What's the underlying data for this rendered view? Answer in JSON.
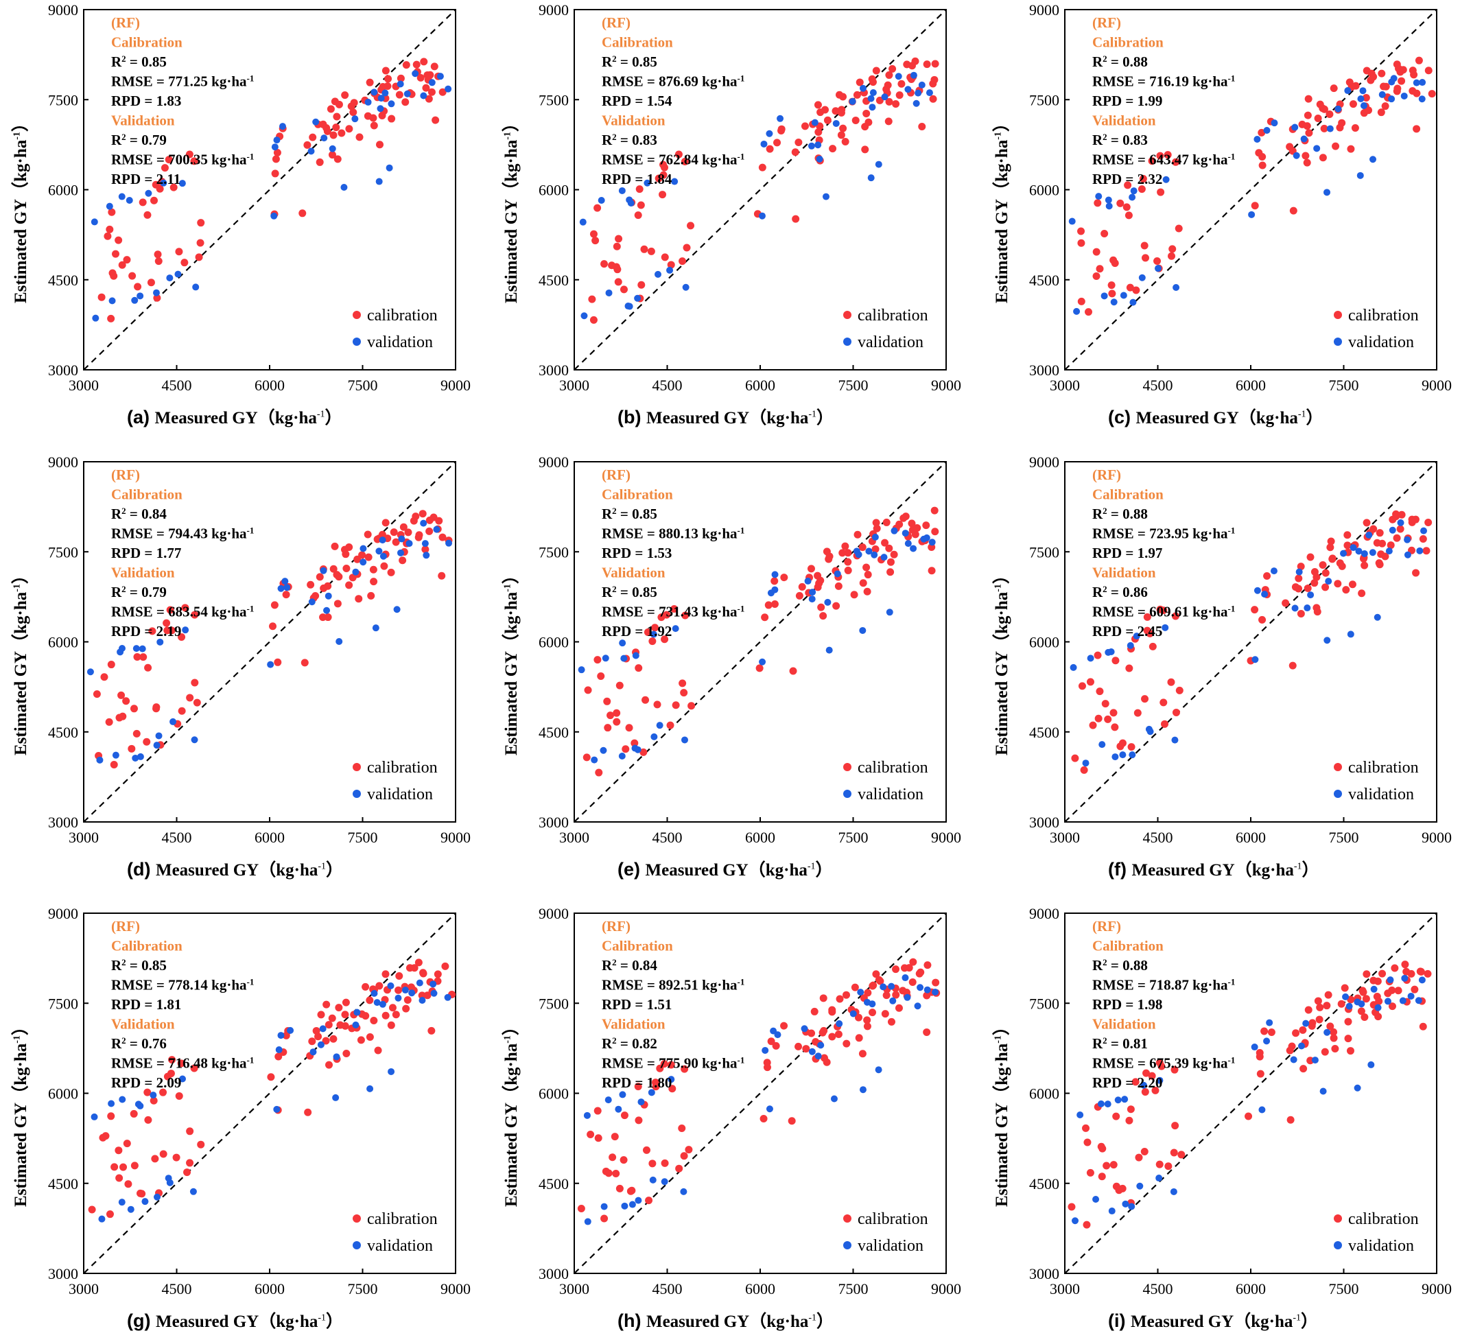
{
  "colors": {
    "calibration": "#f5363a",
    "validation": "#1e5fe0",
    "stats_heading": "#f0883e",
    "axis": "#000000"
  },
  "axes": {
    "xlim": [
      3000,
      9000
    ],
    "ylim": [
      3000,
      9000
    ],
    "ticks": [
      3000,
      4500,
      6000,
      7500,
      9000
    ],
    "tick_labels": [
      "3000",
      "4500",
      "6000",
      "7500",
      "9000"
    ],
    "xlabel": "Measured GY（kg·ha",
    "xlabel_sup": "-1",
    "xlabel_end": "）",
    "ylabel": "Estimated GY（kg·ha",
    "ylabel_sup": "-1",
    "ylabel_end": "）",
    "reference_line": "1:1 dashed",
    "grid": false
  },
  "legend": {
    "calibration": "calibration",
    "validation": "validation",
    "position": "bottom-right"
  },
  "stats_labels": {
    "model": "(RF)",
    "calibration": "Calibration",
    "validation": "Validation",
    "r2": "R",
    "r2_sup": "2",
    "r2_eq": " = ",
    "rmse": "RMSE = ",
    "rmse_unit": " kg·ha",
    "rmse_sup": "-1",
    "rpd": "RPD = "
  },
  "chart_data": [
    {
      "type": "scatter",
      "panel": "(a)",
      "cal": {
        "r2": "0.85",
        "rmse": "771.25",
        "rpd": "1.83"
      },
      "val": {
        "r2": "0.79",
        "rmse": "700.35",
        "rpd": "2.11"
      }
    },
    {
      "type": "scatter",
      "panel": "(b)",
      "cal": {
        "r2": "0.85",
        "rmse": "876.69",
        "rpd": "1.54"
      },
      "val": {
        "r2": "0.83",
        "rmse": "762.84",
        "rpd": "1.84"
      }
    },
    {
      "type": "scatter",
      "panel": "(c)",
      "cal": {
        "r2": "0.88",
        "rmse": "716.19",
        "rpd": "1.99"
      },
      "val": {
        "r2": "0.83",
        "rmse": "643.47",
        "rpd": "2.32"
      }
    },
    {
      "type": "scatter",
      "panel": "(d)",
      "cal": {
        "r2": "0.84",
        "rmse": "794.43",
        "rpd": "1.77"
      },
      "val": {
        "r2": "0.79",
        "rmse": "683.54",
        "rpd": "2.19"
      }
    },
    {
      "type": "scatter",
      "panel": "(e)",
      "cal": {
        "r2": "0.85",
        "rmse": "880.13",
        "rpd": "1.53"
      },
      "val": {
        "r2": "0.85",
        "rmse": "731.43",
        "rpd": "1.92"
      }
    },
    {
      "type": "scatter",
      "panel": "(f)",
      "cal": {
        "r2": "0.88",
        "rmse": "723.95",
        "rpd": "1.97"
      },
      "val": {
        "r2": "0.86",
        "rmse": "609.61",
        "rpd": "2.45"
      }
    },
    {
      "type": "scatter",
      "panel": "(g)",
      "cal": {
        "r2": "0.85",
        "rmse": "778.14",
        "rpd": "1.81"
      },
      "val": {
        "r2": "0.76",
        "rmse": "716.48",
        "rpd": "2.09"
      }
    },
    {
      "type": "scatter",
      "panel": "(h)",
      "cal": {
        "r2": "0.84",
        "rmse": "892.51",
        "rpd": "1.51"
      },
      "val": {
        "r2": "0.82",
        "rmse": "775.90",
        "rpd": "1.80"
      }
    },
    {
      "type": "scatter",
      "panel": "(i)",
      "cal": {
        "r2": "0.88",
        "rmse": "718.87",
        "rpd": "1.98"
      },
      "val": {
        "r2": "0.81",
        "rmse": "675.39",
        "rpd": "2.20"
      }
    }
  ],
  "scatter_points": {
    "calibration": [
      [
        3200,
        4150
      ],
      [
        3300,
        5200
      ],
      [
        3350,
        5350
      ],
      [
        3400,
        3900
      ],
      [
        3450,
        5700
      ],
      [
        3500,
        4700
      ],
      [
        3550,
        4650
      ],
      [
        3600,
        5000
      ],
      [
        3650,
        5200
      ],
      [
        3700,
        4750
      ],
      [
        3750,
        4800
      ],
      [
        3800,
        4500
      ],
      [
        3850,
        4300
      ],
      [
        3900,
        5700
      ],
      [
        3950,
        5500
      ],
      [
        4000,
        4400
      ],
      [
        4050,
        5800
      ],
      [
        4100,
        6100
      ],
      [
        4150,
        4250
      ],
      [
        4200,
        5000
      ],
      [
        4250,
        4900
      ],
      [
        4300,
        6100
      ],
      [
        4350,
        6200
      ],
      [
        4400,
        6400
      ],
      [
        4450,
        6500
      ],
      [
        4500,
        6000
      ],
      [
        4550,
        4900
      ],
      [
        4600,
        4700
      ],
      [
        4650,
        6500
      ],
      [
        4700,
        6400
      ],
      [
        4800,
        5400
      ],
      [
        4800,
        5100
      ],
      [
        4800,
        4900
      ],
      [
        6050,
        5650
      ],
      [
        6100,
        6350
      ],
      [
        6150,
        6600
      ],
      [
        6200,
        6700
      ],
      [
        6250,
        6950
      ],
      [
        6300,
        7050
      ],
      [
        6600,
        5600
      ],
      [
        6650,
        6700
      ],
      [
        6700,
        6800
      ],
      [
        6750,
        7000
      ],
      [
        6800,
        7000
      ],
      [
        6850,
        6900
      ],
      [
        6900,
        7300
      ],
      [
        6950,
        6900
      ],
      [
        7000,
        7500
      ],
      [
        7050,
        7100
      ],
      [
        7100,
        7300
      ],
      [
        7150,
        6600
      ],
      [
        7200,
        7500
      ],
      [
        7250,
        7000
      ],
      [
        7300,
        7600
      ],
      [
        7350,
        7000
      ],
      [
        7400,
        7400
      ],
      [
        7450,
        6800
      ],
      [
        7500,
        7400
      ],
      [
        7550,
        7700
      ],
      [
        7600,
        7000
      ],
      [
        7650,
        7500
      ],
      [
        7700,
        6750
      ],
      [
        7750,
        7700
      ],
      [
        7800,
        7300
      ],
      [
        7850,
        7800
      ],
      [
        7900,
        7400
      ],
      [
        7950,
        7600
      ],
      [
        8000,
        7900
      ],
      [
        8050,
        7200
      ],
      [
        8100,
        7700
      ],
      [
        8150,
        7800
      ],
      [
        8200,
        8000
      ],
      [
        8250,
        7500
      ],
      [
        8300,
        8000
      ],
      [
        8350,
        7800
      ],
      [
        8400,
        8100
      ],
      [
        8450,
        7700
      ],
      [
        8500,
        7950
      ],
      [
        8550,
        7900
      ],
      [
        8600,
        7600
      ],
      [
        8650,
        8000
      ],
      [
        8700,
        7700
      ],
      [
        8750,
        8100
      ],
      [
        8800,
        7900
      ],
      [
        8850,
        7600
      ],
      [
        8700,
        7100
      ],
      [
        7000,
        6500
      ],
      [
        7300,
        7200
      ],
      [
        7800,
        7900
      ],
      [
        8100,
        7400
      ],
      [
        7500,
        7200
      ],
      [
        7250,
        7400
      ],
      [
        7650,
        7650
      ],
      [
        7900,
        7800
      ],
      [
        8300,
        7700
      ],
      [
        8450,
        8050
      ],
      [
        7000,
        7100
      ],
      [
        6900,
        6500
      ],
      [
        7750,
        7200
      ],
      [
        8150,
        7550
      ]
    ],
    "validation": [
      [
        3200,
        5550
      ],
      [
        3250,
        3950
      ],
      [
        3500,
        5800
      ],
      [
        3550,
        4200
      ],
      [
        3700,
        5900
      ],
      [
        3800,
        5800
      ],
      [
        3850,
        4100
      ],
      [
        3900,
        4150
      ],
      [
        4000,
        5850
      ],
      [
        4100,
        4200
      ],
      [
        4200,
        6050
      ],
      [
        4300,
        4500
      ],
      [
        4450,
        4600
      ],
      [
        4550,
        6150
      ],
      [
        4800,
        4450
      ],
      [
        6100,
        5650
      ],
      [
        6150,
        6800
      ],
      [
        6200,
        6900
      ],
      [
        6300,
        7100
      ],
      [
        6750,
        6650
      ],
      [
        6800,
        7100
      ],
      [
        6900,
        6800
      ],
      [
        7000,
        6600
      ],
      [
        7150,
        5950
      ],
      [
        7300,
        7100
      ],
      [
        7500,
        7400
      ],
      [
        7600,
        7600
      ],
      [
        7700,
        6150
      ],
      [
        7750,
        7400
      ],
      [
        7800,
        7600
      ],
      [
        7900,
        7700
      ],
      [
        8000,
        6450
      ],
      [
        8050,
        7500
      ],
      [
        8200,
        7800
      ],
      [
        8300,
        7600
      ],
      [
        8400,
        7900
      ],
      [
        8500,
        7500
      ],
      [
        8600,
        7700
      ],
      [
        8700,
        7800
      ],
      [
        8800,
        7600
      ]
    ]
  }
}
